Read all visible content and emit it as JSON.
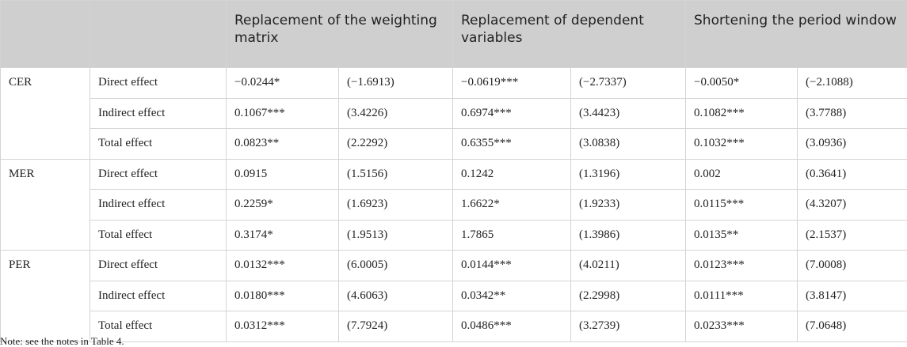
{
  "table": {
    "headers": [
      "Replacement of the weighting matrix",
      "Replacement of dependent variables",
      "Shortening the period window"
    ],
    "groups": [
      {
        "name": "CER",
        "rows": [
          {
            "effect": "Direct effect",
            "cells": [
              "−0.0244*",
              "(−1.6913)",
              "−0.0619***",
              "(−2.7337)",
              "−0.0050*",
              "(−2.1088)"
            ]
          },
          {
            "effect": "Indirect effect",
            "cells": [
              "0.1067***",
              "(3.4226)",
              "0.6974***",
              "(3.4423)",
              "0.1082***",
              "(3.7788)"
            ]
          },
          {
            "effect": "Total effect",
            "cells": [
              "0.0823**",
              "(2.2292)",
              "0.6355***",
              "(3.0838)",
              "0.1032***",
              "(3.0936)"
            ]
          }
        ]
      },
      {
        "name": "MER",
        "rows": [
          {
            "effect": "Direct effect",
            "cells": [
              "0.0915",
              "(1.5156)",
              "0.1242",
              "(1.3196)",
              "0.002",
              "(0.3641)"
            ]
          },
          {
            "effect": "Indirect effect",
            "cells": [
              "0.2259*",
              "(1.6923)",
              "1.6622*",
              "(1.9233)",
              "0.0115***",
              "(4.3207)"
            ]
          },
          {
            "effect": "Total effect",
            "cells": [
              "0.3174*",
              "(1.9513)",
              "1.7865",
              "(1.3986)",
              "0.0135**",
              "(2.1537)"
            ]
          }
        ]
      },
      {
        "name": "PER",
        "rows": [
          {
            "effect": "Direct effect",
            "cells": [
              "0.0132***",
              "(6.0005)",
              "0.0144***",
              "(4.0211)",
              "0.0123***",
              "(7.0008)"
            ]
          },
          {
            "effect": "Indirect effect",
            "cells": [
              "0.0180***",
              "(4.6063)",
              "0.0342**",
              "(2.2998)",
              "0.0111***",
              "(3.8147)"
            ]
          },
          {
            "effect": "Total effect",
            "cells": [
              "0.0312***",
              "(7.7924)",
              "0.0486***",
              "(3.2739)",
              "0.0233***",
              "(7.0648)"
            ]
          }
        ]
      }
    ],
    "note": "Note: see the notes in Table 4."
  }
}
